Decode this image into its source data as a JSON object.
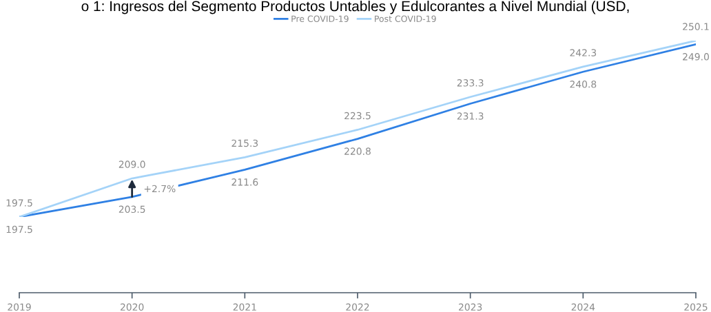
{
  "chart_data": {
    "type": "line",
    "title": "o 1: Ingresos del Segmento Productos Untables y Edulcorantes a Nivel Mundial (USD,",
    "x": [
      2019,
      2020,
      2021,
      2022,
      2023,
      2024,
      2025
    ],
    "series": [
      {
        "name": "Pre COVID-19",
        "color": "#2f80e4",
        "values": [
          197.5,
          203.5,
          211.6,
          220.8,
          231.3,
          240.8,
          249.0
        ],
        "value_labels": [
          "197.5",
          "203.5",
          "211.6",
          "220.8",
          "231.3",
          "240.8",
          "249.0"
        ]
      },
      {
        "name": "Post COVID-19",
        "color": "#a4d3f8",
        "values": [
          197.5,
          209.0,
          215.3,
          223.5,
          233.3,
          242.3,
          250.1
        ],
        "value_labels": [
          "197.5",
          "209.0",
          "215.3",
          "223.5",
          "233.3",
          "242.3",
          "250.1"
        ]
      }
    ],
    "xlim": [
      2019,
      2025
    ],
    "xticks": [
      2019,
      2020,
      2021,
      2022,
      2023,
      2024,
      2025
    ],
    "tick_labels": "x",
    "legend": "top",
    "grid": false,
    "marker": "none",
    "line_style": "solid",
    "annotations": [
      {
        "text": "+2.7%",
        "x": 2020,
        "y": 209.0
      }
    ]
  }
}
